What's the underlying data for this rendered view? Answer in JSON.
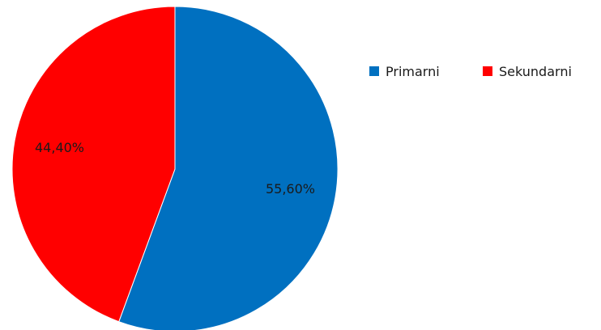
{
  "chart_data": {
    "type": "pie",
    "title": "",
    "legend_position": "right",
    "categories": [
      "Primarni",
      "Sekundarni"
    ],
    "values": [
      55.6,
      44.4
    ],
    "data_labels": [
      "55,60%",
      "44,40%"
    ],
    "colors": [
      "#0070c0",
      "#ff0000"
    ]
  }
}
